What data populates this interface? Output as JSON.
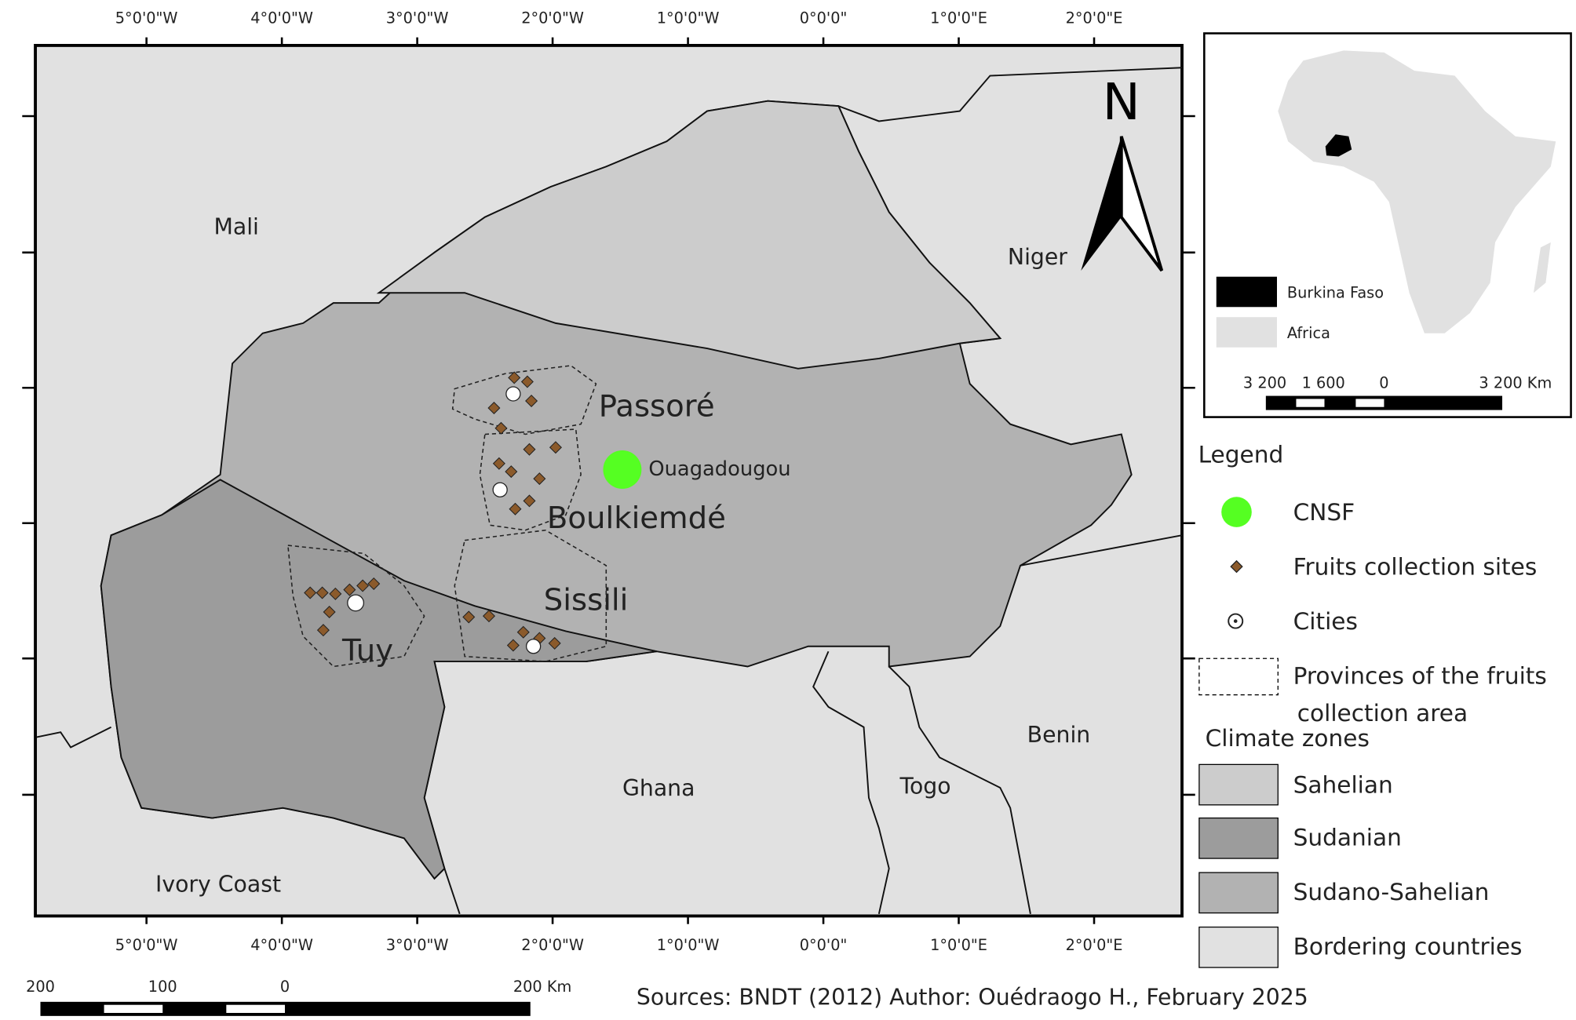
{
  "map": {
    "longitude_labels": [
      "5°0'0\"W",
      "4°0'0\"W",
      "3°0'0\"W",
      "2°0'0\"W",
      "1°0'0\"W",
      "0°0'0\"",
      "1°0'0\"E",
      "2°0'0\"E"
    ],
    "countries": [
      "Mali",
      "Niger",
      "Ghana",
      "Togo",
      "Benin",
      "Ivory Coast"
    ],
    "provinces": [
      "Passoré",
      "Boulkiemdé",
      "Sissili",
      "Tuy"
    ],
    "city": "Ouagadougou",
    "north_arrow": "N",
    "scale_bar": [
      "200",
      "100",
      "0",
      "200 Km"
    ]
  },
  "inset": {
    "legend": [
      "Burkina Faso",
      "Africa"
    ],
    "scale_bar": [
      "3 200",
      "1 600",
      "0",
      "3 200 Km"
    ]
  },
  "legend": {
    "title": "Legend",
    "items": [
      "CNSF",
      "Fruits collection sites",
      "Cities"
    ],
    "provinces_item": [
      "Provinces of the fruits",
      "collection area"
    ],
    "climate_title": "Climate zones",
    "climate_zones": [
      "Sahelian",
      "Sudanian",
      "Sudano-Sahelian",
      "Bordering countries"
    ]
  },
  "footer": "Sources: BNDT (2012)  Author: Ouédraogo H., February 2025"
}
